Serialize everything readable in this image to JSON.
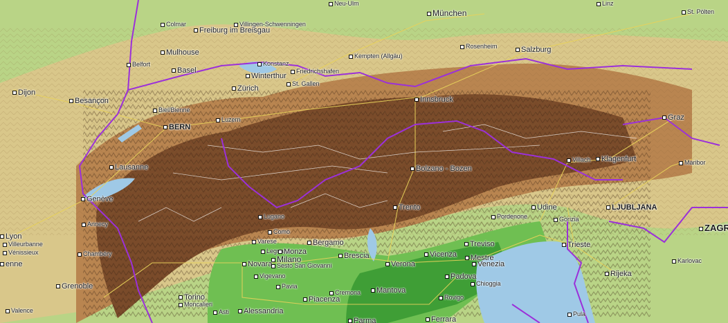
{
  "map": {
    "colors": {
      "lowland": "#9ccf66",
      "plain_green": "#4caa3a",
      "hills": "#d9c78a",
      "foothills": "#c99b5a",
      "mountains": "#8a5a33",
      "high_mountains": "#5e3a22",
      "water": "#9fc9e6",
      "border": "#9b30d9",
      "road": "#e8d25a",
      "minor_road": "#ffffff"
    },
    "cities": [
      {
        "name": "Neu-Ulm",
        "size": "small"
      },
      {
        "name": "München",
        "size": "big"
      },
      {
        "name": "Linz",
        "size": "small"
      },
      {
        "name": "St. Pölten",
        "size": "small"
      },
      {
        "name": "Colmar",
        "size": "small"
      },
      {
        "name": "Villingen-Schwenningen",
        "size": "small"
      },
      {
        "name": "Freiburg im Breisgau",
        "size": "mid"
      },
      {
        "name": "Rosenheim",
        "size": "small"
      },
      {
        "name": "Salzburg",
        "size": "mid"
      },
      {
        "name": "Mulhouse",
        "size": "mid"
      },
      {
        "name": "Konstanz",
        "size": "small"
      },
      {
        "name": "Kempten (Allgäu)",
        "size": "small"
      },
      {
        "name": "Belfort",
        "size": "small"
      },
      {
        "name": "Basel",
        "size": "mid"
      },
      {
        "name": "Friedrichshafen",
        "size": "small"
      },
      {
        "name": "Winterthur",
        "size": "mid"
      },
      {
        "name": "Dijon",
        "size": "mid"
      },
      {
        "name": "Zürich",
        "size": "mid"
      },
      {
        "name": "St. Gallen",
        "size": "small"
      },
      {
        "name": "Besançon",
        "size": "mid"
      },
      {
        "name": "Innsbruck",
        "size": "mid"
      },
      {
        "name": "Graz",
        "size": "mid"
      },
      {
        "name": "Biel/Bienne",
        "size": "small"
      },
      {
        "name": "Luzern",
        "size": "small"
      },
      {
        "name": "BERN",
        "size": "capital"
      },
      {
        "name": "Villach",
        "size": "small"
      },
      {
        "name": "Klagenfurt",
        "size": "mid"
      },
      {
        "name": "Lausanne",
        "size": "mid"
      },
      {
        "name": "Bolzano - Bozen",
        "size": "mid"
      },
      {
        "name": "Maribor",
        "size": "small"
      },
      {
        "name": "Genève",
        "size": "mid"
      },
      {
        "name": "Trento",
        "size": "mid"
      },
      {
        "name": "Udine",
        "size": "mid"
      },
      {
        "name": "LJUBLJANA",
        "size": "capital"
      },
      {
        "name": "Lugano",
        "size": "small"
      },
      {
        "name": "Pordenone",
        "size": "small"
      },
      {
        "name": "Gorizia",
        "size": "small"
      },
      {
        "name": "ZAGR",
        "size": "capital-big"
      },
      {
        "name": "Annecy",
        "size": "small"
      },
      {
        "name": "Como",
        "size": "small"
      },
      {
        "name": "Lyon",
        "size": "mid"
      },
      {
        "name": "Varese",
        "size": "small"
      },
      {
        "name": "Bergamo",
        "size": "mid"
      },
      {
        "name": "Treviso",
        "size": "mid"
      },
      {
        "name": "Trieste",
        "size": "mid"
      },
      {
        "name": "Villeurbanne",
        "size": "small"
      },
      {
        "name": "Vénissieux",
        "size": "small"
      },
      {
        "name": "Legnano",
        "size": "small"
      },
      {
        "name": "Monza",
        "size": "mid"
      },
      {
        "name": "Chambéry",
        "size": "small"
      },
      {
        "name": "Milano",
        "size": "big"
      },
      {
        "name": "Brescia",
        "size": "mid"
      },
      {
        "name": "Vicenza",
        "size": "mid"
      },
      {
        "name": "Mestre",
        "size": "mid"
      },
      {
        "name": "Venezia",
        "size": "mid"
      },
      {
        "name": "Novara",
        "size": "mid"
      },
      {
        "name": "Sesto San Giovanni",
        "size": "small"
      },
      {
        "name": "Verona",
        "size": "mid"
      },
      {
        "name": "Karlovac",
        "size": "small"
      },
      {
        "name": "enne",
        "size": "mid"
      },
      {
        "name": "Vigevano",
        "size": "small"
      },
      {
        "name": "Padova",
        "size": "mid"
      },
      {
        "name": "Rijeka",
        "size": "mid"
      },
      {
        "name": "Grenoble",
        "size": "mid"
      },
      {
        "name": "Pavia",
        "size": "small"
      },
      {
        "name": "Cremona",
        "size": "small"
      },
      {
        "name": "Mantova",
        "size": "mid"
      },
      {
        "name": "Chioggia",
        "size": "small"
      },
      {
        "name": "Torino",
        "size": "mid"
      },
      {
        "name": "Moncalieri",
        "size": "small"
      },
      {
        "name": "Piacenza",
        "size": "mid"
      },
      {
        "name": "Rovigo",
        "size": "small"
      },
      {
        "name": "Asti",
        "size": "small"
      },
      {
        "name": "Valence",
        "size": "small"
      },
      {
        "name": "Alessandria",
        "size": "mid"
      },
      {
        "name": "Parma",
        "size": "mid"
      },
      {
        "name": "Ferrara",
        "size": "mid"
      },
      {
        "name": "Pula",
        "size": "small"
      }
    ]
  }
}
